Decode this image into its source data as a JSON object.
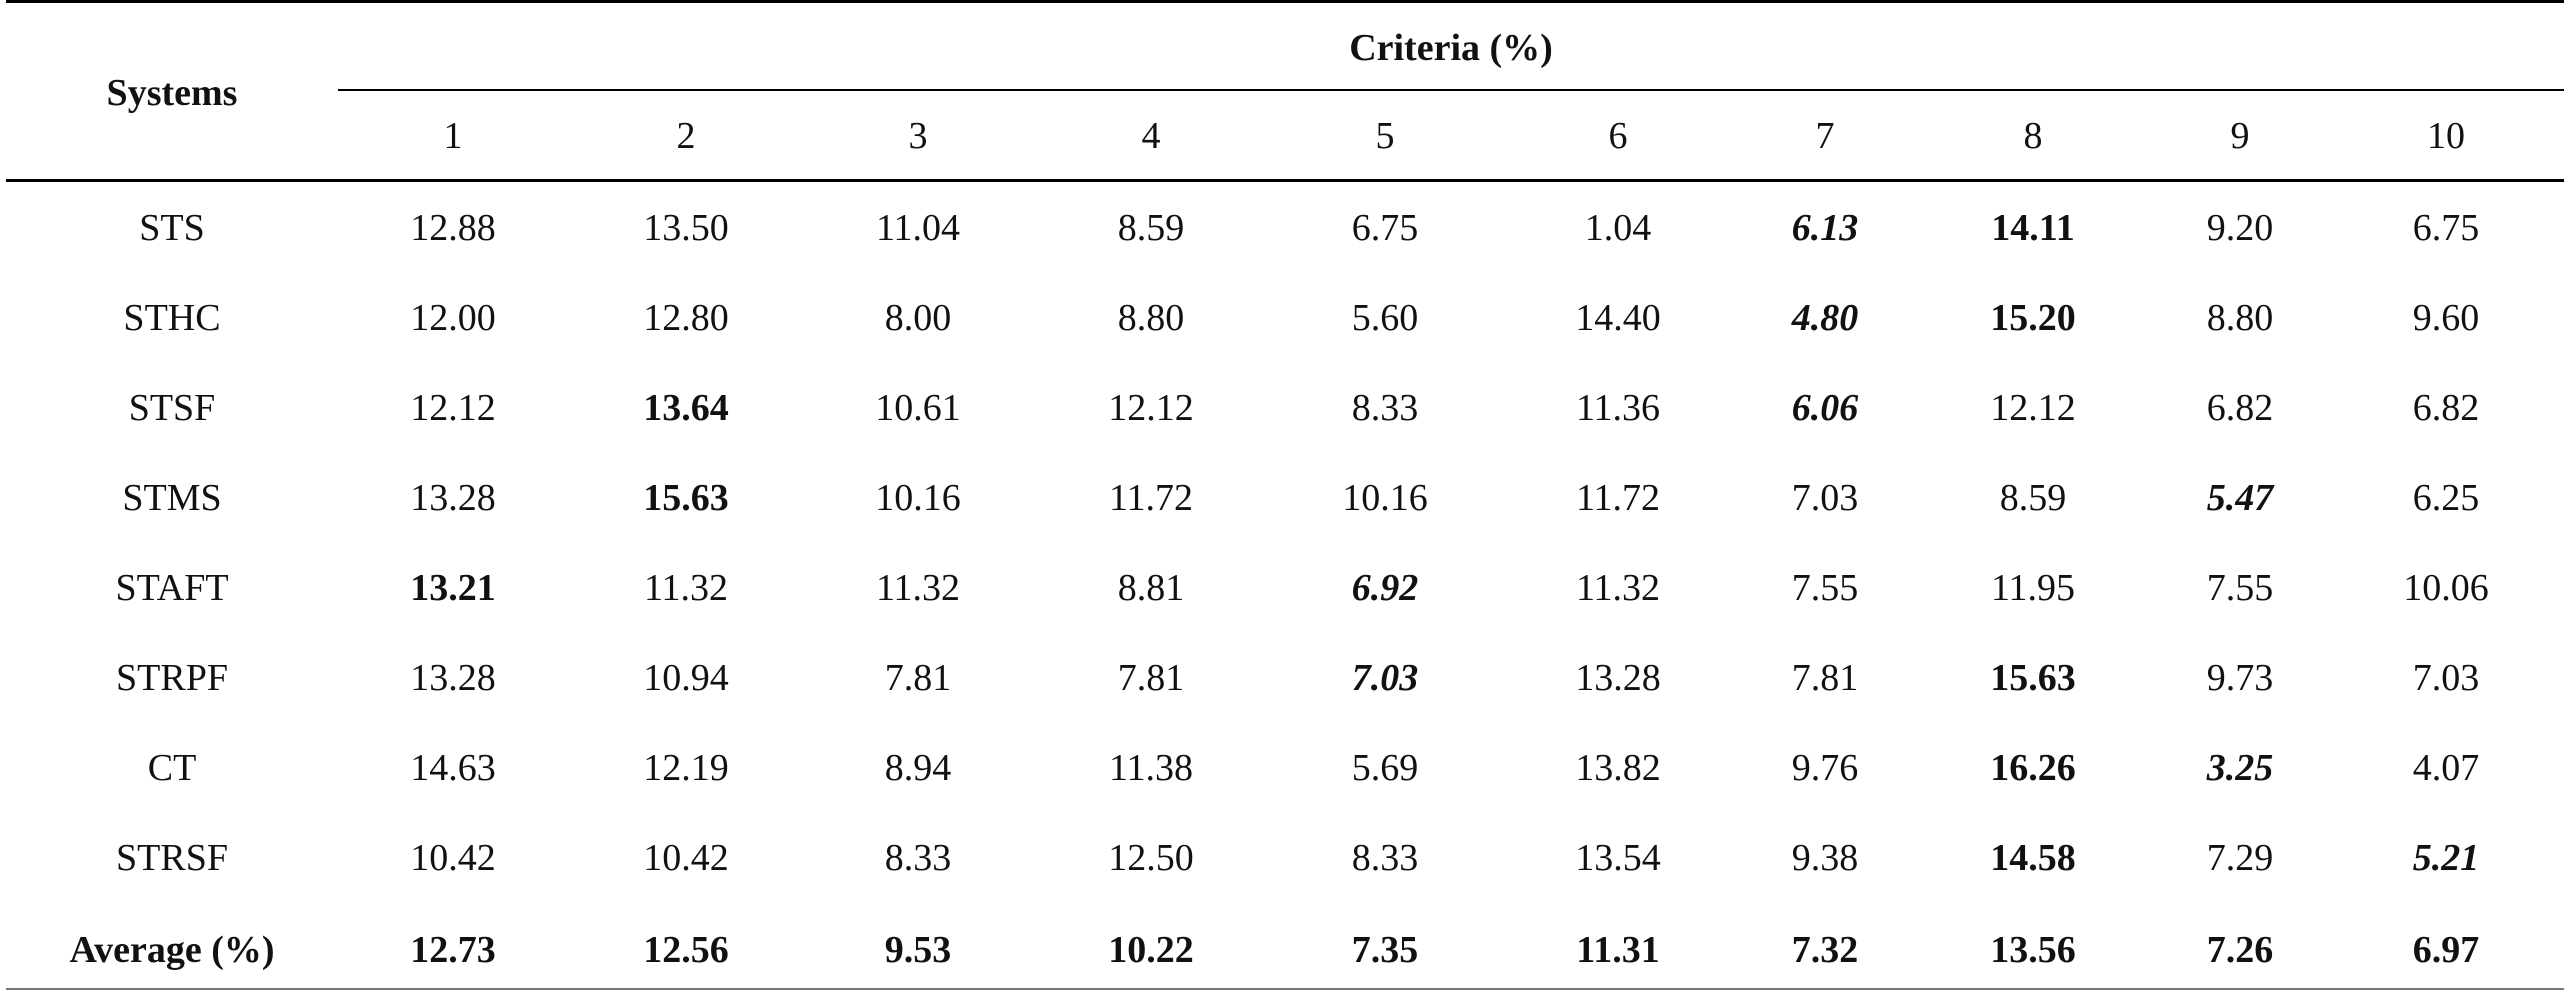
{
  "header": {
    "systems_label": "Systems",
    "criteria_label": "Criteria (%)",
    "columns": [
      "1",
      "2",
      "3",
      "4",
      "5",
      "6",
      "7",
      "8",
      "9",
      "10"
    ]
  },
  "rows": [
    {
      "system": "STS",
      "values": [
        "12.88",
        "13.50",
        "11.04",
        "8.59",
        "6.75",
        "1.04",
        "6.13",
        "14.11",
        "9.20",
        "6.75"
      ],
      "styles": [
        "",
        "",
        "",
        "",
        "",
        "",
        "bi",
        "b",
        "",
        ""
      ]
    },
    {
      "system": "STHC",
      "values": [
        "12.00",
        "12.80",
        "8.00",
        "8.80",
        "5.60",
        "14.40",
        "4.80",
        "15.20",
        "8.80",
        "9.60"
      ],
      "styles": [
        "",
        "",
        "",
        "",
        "",
        "",
        "bi",
        "b",
        "",
        ""
      ]
    },
    {
      "system": "STSF",
      "values": [
        "12.12",
        "13.64",
        "10.61",
        "12.12",
        "8.33",
        "11.36",
        "6.06",
        "12.12",
        "6.82",
        "6.82"
      ],
      "styles": [
        "",
        "b",
        "",
        "",
        "",
        "",
        "bi",
        "",
        "",
        ""
      ]
    },
    {
      "system": "STMS",
      "values": [
        "13.28",
        "15.63",
        "10.16",
        "11.72",
        "10.16",
        "11.72",
        "7.03",
        "8.59",
        "5.47",
        "6.25"
      ],
      "styles": [
        "",
        "b",
        "",
        "",
        "",
        "",
        "",
        "",
        "bi",
        ""
      ]
    },
    {
      "system": "STAFT",
      "values": [
        "13.21",
        "11.32",
        "11.32",
        "8.81",
        "6.92",
        "11.32",
        "7.55",
        "11.95",
        "7.55",
        "10.06"
      ],
      "styles": [
        "b",
        "",
        "",
        "",
        "bi",
        "",
        "",
        "",
        "",
        ""
      ]
    },
    {
      "system": "STRPF",
      "values": [
        "13.28",
        "10.94",
        "7.81",
        "7.81",
        "7.03",
        "13.28",
        "7.81",
        "15.63",
        "9.73",
        "7.03"
      ],
      "styles": [
        "",
        "",
        "",
        "",
        "bi",
        "",
        "",
        "b",
        "",
        ""
      ]
    },
    {
      "system": "CT",
      "values": [
        "14.63",
        "12.19",
        "8.94",
        "11.38",
        "5.69",
        "13.82",
        "9.76",
        "16.26",
        "3.25",
        "4.07"
      ],
      "styles": [
        "",
        "",
        "",
        "",
        "",
        "",
        "",
        "b",
        "bi",
        ""
      ]
    },
    {
      "system": "STRSF",
      "values": [
        "10.42",
        "10.42",
        "8.33",
        "12.50",
        "8.33",
        "13.54",
        "9.38",
        "14.58",
        "7.29",
        "5.21"
      ],
      "styles": [
        "",
        "",
        "",
        "",
        "",
        "",
        "",
        "b",
        "",
        "bi"
      ]
    }
  ],
  "average": {
    "label": "Average (%)",
    "values": [
      "12.73",
      "12.56",
      "9.53",
      "10.22",
      "7.35",
      "11.31",
      "7.32",
      "13.56",
      "7.26",
      "6.97"
    ]
  }
}
